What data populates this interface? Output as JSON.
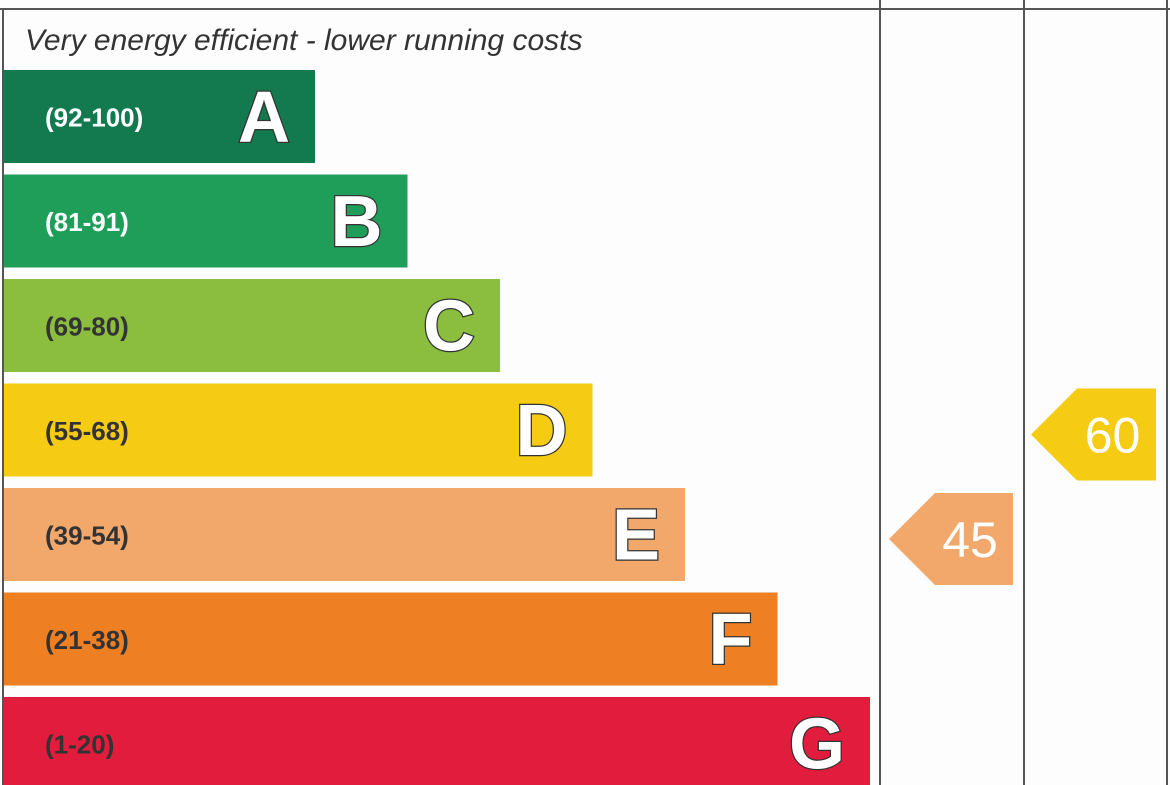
{
  "chart_data": {
    "type": "bar",
    "header": "Very energy efficient - lower running costs",
    "bands": [
      {
        "letter": "A",
        "range": "(92-100)",
        "min": 92,
        "max": 100,
        "color": "#127a4e",
        "range_color": "#ffffff"
      },
      {
        "letter": "B",
        "range": "(81-91)",
        "min": 81,
        "max": 91,
        "color": "#1f9e5a",
        "range_color": "#ffffff"
      },
      {
        "letter": "C",
        "range": "(69-80)",
        "min": 69,
        "max": 80,
        "color": "#8bbd3f",
        "range_color": "#333333"
      },
      {
        "letter": "D",
        "range": "(55-68)",
        "min": 55,
        "max": 68,
        "color": "#f6cb14",
        "range_color": "#333333"
      },
      {
        "letter": "E",
        "range": "(39-54)",
        "min": 39,
        "max": 54,
        "color": "#f2a76b",
        "range_color": "#333333"
      },
      {
        "letter": "F",
        "range": "(21-38)",
        "min": 21,
        "max": 38,
        "color": "#ee7f23",
        "range_color": "#333333"
      },
      {
        "letter": "G",
        "range": "(1-20)",
        "min": 1,
        "max": 20,
        "color": "#e21c3c",
        "range_color": "#333333"
      }
    ],
    "ratings": [
      {
        "value": 45,
        "band": "E",
        "color": "#f2a76b"
      },
      {
        "value": 60,
        "band": "D",
        "color": "#f6cb14"
      }
    ]
  }
}
